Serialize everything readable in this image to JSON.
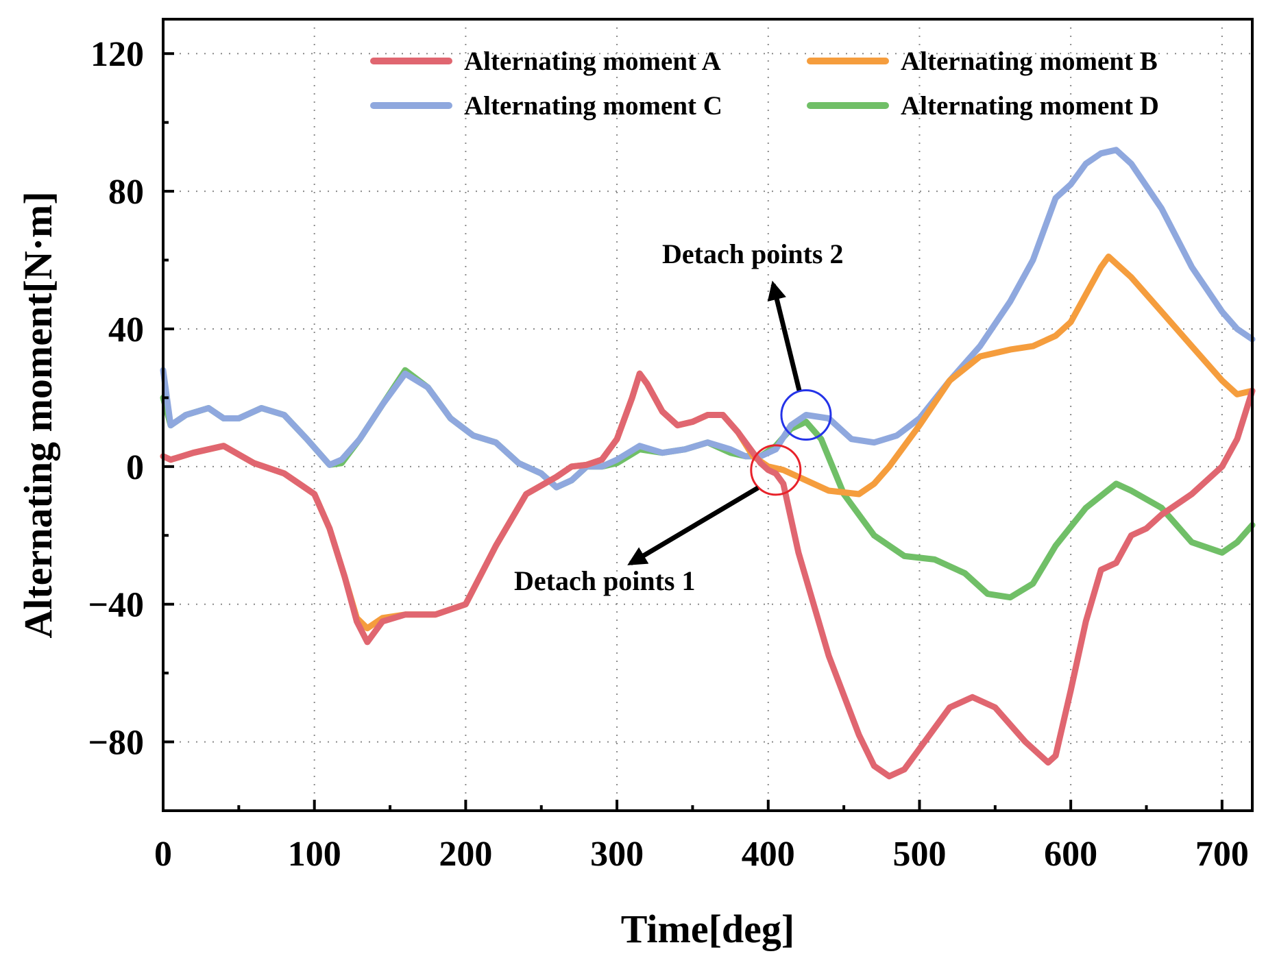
{
  "chart_data": {
    "type": "line",
    "title": "",
    "xlabel": "Time[deg]",
    "ylabel": "Alternating moment[N·m]",
    "xlim": [
      0,
      720
    ],
    "ylim": [
      -100,
      130
    ],
    "xticks": [
      0,
      100,
      200,
      300,
      400,
      500,
      600,
      700
    ],
    "yticks": [
      -80,
      -40,
      0,
      40,
      80,
      120
    ],
    "xtick_labels": [
      "0",
      "100",
      "200",
      "300",
      "400",
      "500",
      "600",
      "700"
    ],
    "ytick_labels": [
      "−80",
      "−40",
      "0",
      "40",
      "80",
      "120"
    ],
    "grid": true,
    "legend_position": "top-right",
    "series": [
      {
        "name": "Alternating moment A",
        "color": "#e06670",
        "x": [
          0,
          5,
          20,
          40,
          60,
          80,
          100,
          110,
          120,
          128,
          135,
          145,
          160,
          180,
          200,
          220,
          240,
          260,
          270,
          280,
          290,
          300,
          310,
          315,
          320,
          330,
          340,
          350,
          360,
          370,
          380,
          390,
          395,
          400,
          405,
          410,
          420,
          440,
          460,
          470,
          480,
          490,
          500,
          520,
          535,
          550,
          570,
          585,
          590,
          600,
          610,
          620,
          630,
          640,
          650,
          660,
          680,
          700,
          710,
          720
        ],
        "y": [
          3,
          2,
          4,
          6,
          1,
          -2,
          -8,
          -18,
          -32,
          -45,
          -51,
          -45,
          -43,
          -43,
          -40,
          -23,
          -8,
          -3,
          0,
          0.5,
          2,
          8,
          20,
          27,
          24,
          16,
          12,
          13,
          15,
          15,
          10,
          4,
          1,
          -1,
          -2,
          -5,
          -25,
          -55,
          -78,
          -87,
          -90,
          -88,
          -82,
          -70,
          -67,
          -70,
          -80,
          -86,
          -84,
          -65,
          -45,
          -30,
          -28,
          -20,
          -18,
          -14,
          -8,
          0,
          8,
          22
        ]
      },
      {
        "name": "Alternating moment B",
        "color": "#f59d3d",
        "x": [
          0,
          5,
          20,
          40,
          60,
          80,
          100,
          110,
          120,
          128,
          135,
          145,
          160,
          180,
          200,
          220,
          240,
          260,
          270,
          280,
          290,
          300,
          310,
          315,
          320,
          330,
          340,
          350,
          360,
          370,
          380,
          390,
          400,
          410,
          420,
          440,
          460,
          470,
          480,
          500,
          520,
          540,
          560,
          575,
          590,
          600,
          610,
          620,
          625,
          640,
          660,
          680,
          700,
          710,
          720
        ],
        "y": [
          3,
          2,
          4,
          6,
          1,
          -2,
          -8,
          -18,
          -32,
          -44,
          -47,
          -44,
          -43,
          -43,
          -40,
          -23,
          -8,
          -3,
          0,
          0.5,
          2,
          8,
          20,
          27,
          24,
          16,
          12,
          13,
          15,
          15,
          10,
          3,
          0,
          -1,
          -3,
          -7,
          -8,
          -5,
          0,
          12,
          25,
          32,
          34,
          35,
          38,
          42,
          50,
          58,
          61,
          55,
          45,
          35,
          25,
          21,
          22
        ]
      },
      {
        "name": "Alternating moment C",
        "color": "#8fa8de",
        "x": [
          0,
          5,
          15,
          30,
          40,
          50,
          65,
          80,
          95,
          110,
          118,
          130,
          145,
          160,
          175,
          190,
          205,
          220,
          235,
          250,
          260,
          270,
          280,
          290,
          300,
          315,
          330,
          345,
          360,
          375,
          385,
          395,
          405,
          415,
          425,
          440,
          455,
          470,
          485,
          500,
          520,
          540,
          560,
          575,
          590,
          600,
          610,
          620,
          630,
          640,
          660,
          680,
          700,
          710,
          720
        ],
        "y": [
          28,
          12,
          15,
          17,
          14,
          14,
          17,
          15,
          8,
          0.5,
          2,
          8,
          18,
          27,
          23,
          14,
          9,
          7,
          1,
          -2,
          -6,
          -4,
          0,
          0,
          2,
          6,
          4,
          5,
          7,
          5,
          3,
          3,
          5,
          12,
          15,
          14,
          8,
          7,
          9,
          14,
          25,
          35,
          48,
          60,
          78,
          82,
          88,
          91,
          92,
          88,
          75,
          58,
          45,
          40,
          37
        ]
      },
      {
        "name": "Alternating moment D",
        "color": "#70bf67",
        "x": [
          0,
          5,
          15,
          30,
          40,
          50,
          65,
          80,
          95,
          110,
          118,
          130,
          145,
          160,
          175,
          190,
          205,
          220,
          235,
          250,
          260,
          270,
          280,
          290,
          300,
          315,
          330,
          345,
          360,
          375,
          385,
          395,
          405,
          415,
          425,
          435,
          450,
          470,
          490,
          510,
          530,
          545,
          560,
          575,
          590,
          610,
          630,
          640,
          660,
          680,
          700,
          710,
          720
        ],
        "y": [
          20,
          12,
          15,
          17,
          14,
          14,
          17,
          15,
          8,
          0.5,
          1,
          8,
          18,
          28,
          23,
          14,
          9,
          7,
          1,
          -2,
          -6,
          -4,
          0,
          0,
          1,
          5,
          4,
          5,
          7,
          4,
          3,
          3,
          6,
          11,
          13,
          8,
          -8,
          -20,
          -26,
          -27,
          -31,
          -37,
          -38,
          -34,
          -23,
          -12,
          -5,
          -7,
          -12,
          -22,
          -25,
          -22,
          -17
        ]
      }
    ],
    "annotations": [
      {
        "text": "Detach points 1",
        "circle_color": "#e8222a",
        "point_x": 405,
        "point_y": -1
      },
      {
        "text": "Detach points 2",
        "circle_color": "#2433e8",
        "point_x": 425,
        "point_y": 15
      }
    ]
  }
}
